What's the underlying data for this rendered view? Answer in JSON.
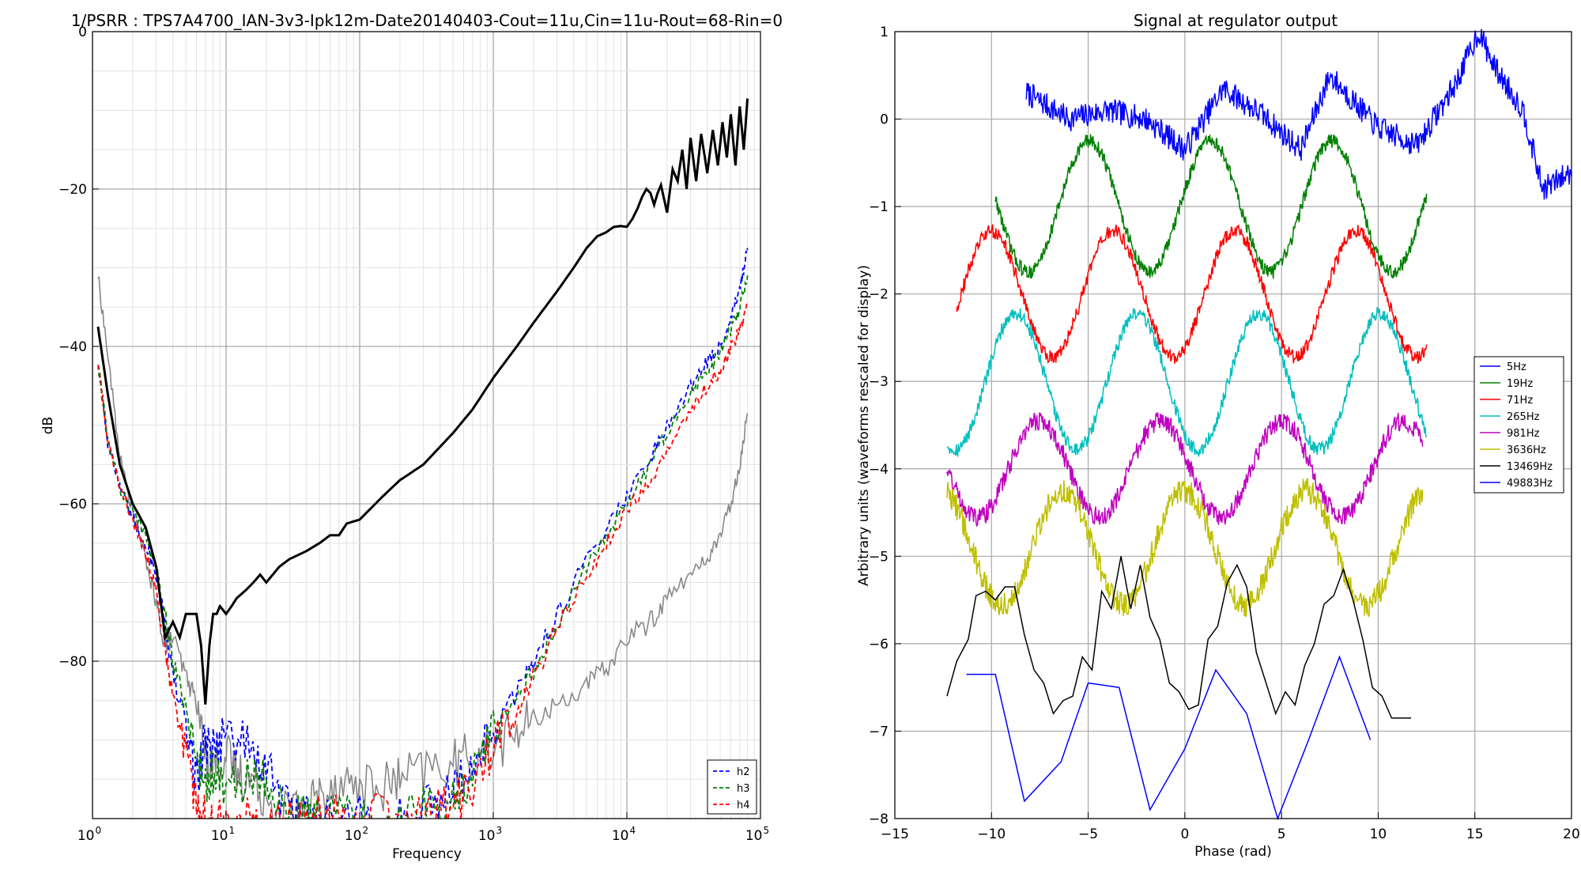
{
  "chart_data": [
    {
      "type": "line",
      "title": "1/PSRR : TPS7A4700_IAN-3v3-Ipk12m-Date20140403-Cout=11u,Cin=11u-Rout=68-Rin=0",
      "xlabel": "Frequency",
      "ylabel": "dB",
      "xscale": "log",
      "xlim": [
        1,
        100000
      ],
      "ylim": [
        -100,
        0
      ],
      "xtick_labels": [
        {
          "base": "10",
          "exp": "0"
        },
        {
          "base": "10",
          "exp": "1"
        },
        {
          "base": "10",
          "exp": "2"
        },
        {
          "base": "10",
          "exp": "3"
        },
        {
          "base": "10",
          "exp": "4"
        },
        {
          "base": "10",
          "exp": "5"
        }
      ],
      "ytick_labels": [
        "0",
        "−20",
        "−40",
        "−60",
        "−80"
      ],
      "grid": true,
      "legend_position": "lower-right",
      "series": [
        {
          "name": "",
          "color": "#000000",
          "style": "solid",
          "width": 3,
          "x": [
            1.1,
            1.3,
            1.6,
            2,
            2.5,
            3,
            3.5,
            4,
            4.5,
            5,
            5.5,
            6,
            6.5,
            7,
            7.5,
            8,
            8.5,
            9,
            10,
            11,
            12,
            14,
            16,
            18,
            20,
            25,
            30,
            40,
            50,
            60,
            70,
            80,
            100,
            150,
            200,
            300,
            500,
            700,
            1000,
            1500,
            2000,
            3000,
            4000,
            5000,
            6000,
            7000,
            8000,
            9000,
            10000,
            11000,
            12000,
            13000,
            14000,
            15000,
            16000,
            17000,
            18000,
            20000,
            22000,
            24000,
            26000,
            28000,
            30000,
            33000,
            36000,
            40000,
            44000,
            48000,
            52000,
            56000,
            60000,
            65000,
            70000,
            75000,
            80000
          ],
          "y": [
            -37.5,
            -46,
            -55,
            -60,
            -63,
            -68,
            -77,
            -75,
            -77,
            -74,
            -74,
            -74,
            -78,
            -85.5,
            -78,
            -74,
            -74,
            -73,
            -74,
            -73,
            -72,
            -71,
            -70,
            -69,
            -70,
            -68,
            -67,
            -66,
            -65,
            -64,
            -64,
            -62.5,
            -62,
            -59,
            -57,
            -55,
            -51,
            -48,
            -44,
            -40,
            -37,
            -33,
            -30,
            -27.5,
            -26,
            -25.5,
            -24.8,
            -24.7,
            -24.8,
            -23.8,
            -22.5,
            -21,
            -20,
            -20.5,
            -22,
            -20.5,
            -19.5,
            -23,
            -17.5,
            -19,
            -15,
            -20,
            -13.5,
            -19,
            -13,
            -18,
            -12.5,
            -17,
            -11.5,
            -16,
            -10.5,
            -17,
            -9.5,
            -15,
            -8.5
          ]
        },
        {
          "name": "",
          "color": "#888888",
          "style": "solid",
          "width": 1.6,
          "x": [
            1.1,
            1.3,
            1.6,
            2,
            2.5,
            3,
            3.5,
            4,
            5,
            6,
            7,
            8,
            10,
            12,
            15,
            20,
            30,
            40,
            50,
            70,
            100,
            150,
            200,
            300,
            500,
            700,
            1000,
            1500,
            2000,
            3000,
            5000,
            7000,
            10000,
            15000,
            20000,
            30000,
            40000,
            50000,
            60000,
            70000,
            80000
          ],
          "y": [
            -31,
            -41,
            -54,
            -61,
            -67,
            -73,
            -78,
            -77,
            -82,
            -85,
            -92,
            -93,
            -92,
            -94,
            -95,
            -97,
            -99,
            -98,
            -97,
            -95,
            -96,
            -96,
            -95,
            -94,
            -93,
            -92,
            -91,
            -89,
            -87.5,
            -85.5,
            -83,
            -81,
            -77,
            -75,
            -72,
            -69,
            -67,
            -64,
            -60,
            -55,
            -48.5
          ]
        },
        {
          "name": "h2",
          "color": "#0000ff",
          "style": "dashed",
          "width": 1.8,
          "x": [
            1.1,
            1.3,
            1.6,
            2,
            2.5,
            3,
            3.5,
            4,
            5,
            6,
            7,
            8,
            10,
            15,
            20,
            30,
            40,
            50,
            100,
            200,
            300,
            500,
            700,
            1000,
            1500,
            2000,
            3000,
            5000,
            7000,
            10000,
            15000,
            20000,
            30000,
            40000,
            50000,
            60000,
            70000,
            80000
          ],
          "y": [
            -42,
            -52,
            -58,
            -62,
            -65,
            -69,
            -75,
            -82,
            -88,
            -95,
            -90,
            -91,
            -89,
            -91,
            -94,
            -99,
            -100,
            -100,
            -100,
            -100,
            -99,
            -97,
            -93,
            -89,
            -84,
            -80,
            -74,
            -67,
            -63,
            -59,
            -54,
            -50,
            -45,
            -42,
            -40,
            -36,
            -33,
            -27.5
          ]
        },
        {
          "name": "h3",
          "color": "#008000",
          "style": "dashed",
          "width": 1.8,
          "x": [
            1.1,
            1.3,
            1.6,
            2,
            2.5,
            3,
            3.5,
            4,
            5,
            6,
            7,
            8,
            10,
            15,
            20,
            30,
            40,
            50,
            100,
            200,
            300,
            500,
            700,
            1000,
            1500,
            2000,
            3000,
            5000,
            7000,
            10000,
            15000,
            20000,
            30000,
            40000,
            50000,
            60000,
            70000,
            80000
          ],
          "y": [
            -42,
            -52,
            -58,
            -61,
            -64,
            -68,
            -74,
            -80,
            -86,
            -92,
            -95,
            -94,
            -96,
            -95,
            -94,
            -100,
            -100,
            -100,
            -100,
            -100,
            -99,
            -98,
            -94,
            -89,
            -85,
            -81,
            -75,
            -68,
            -64,
            -60,
            -55,
            -51,
            -46,
            -43,
            -41,
            -38,
            -35,
            -31
          ]
        },
        {
          "name": "h4",
          "color": "#ff0000",
          "style": "dashed",
          "width": 1.8,
          "x": [
            1.1,
            1.3,
            1.6,
            2,
            2.5,
            3,
            3.5,
            4,
            5,
            6,
            7,
            8,
            10,
            15,
            20,
            30,
            40,
            50,
            100,
            200,
            300,
            500,
            700,
            1000,
            1500,
            2000,
            3000,
            5000,
            7000,
            10000,
            15000,
            20000,
            30000,
            40000,
            50000,
            60000,
            70000,
            80000
          ],
          "y": [
            -42,
            -52,
            -58,
            -62,
            -66,
            -71,
            -78,
            -85,
            -92,
            -98,
            -100,
            -100,
            -100,
            -100,
            -100,
            -100,
            -100,
            -100,
            -100,
            -100,
            -100,
            -98,
            -96,
            -91,
            -87,
            -82,
            -76,
            -69,
            -65,
            -61,
            -57,
            -53,
            -48,
            -45,
            -43,
            -40,
            -38,
            -35
          ]
        }
      ]
    },
    {
      "type": "line",
      "title": "Signal at regulator output",
      "xlabel": "Phase (rad)",
      "ylabel": "Arbitrary units (waveforms rescaled for display)",
      "xlim": [
        -15,
        20
      ],
      "ylim": [
        -8,
        1
      ],
      "xtick_labels": [
        "−15",
        "−10",
        "−5",
        "0",
        "5",
        "10",
        "15",
        "20"
      ],
      "ytick_labels": [
        "1",
        "0",
        "−1",
        "−2",
        "−3",
        "−4",
        "−5",
        "−6",
        "−7",
        "−8"
      ],
      "grid": true,
      "legend_position": "center-right",
      "series": [
        {
          "name": "5Hz",
          "color": "#0000ff",
          "xmin": -8.2,
          "xmax": 20.0,
          "period": 6.2832,
          "phase": -1.0,
          "offset": 0.0,
          "amplitude": 0.2,
          "noise": 0.09,
          "x": [
            -8.2,
            -6,
            -4,
            -2,
            0,
            2,
            4,
            6,
            7.5,
            10,
            12,
            14,
            15.2,
            16,
            17.5,
            18.5,
            19.3,
            20
          ],
          "y": [
            0.3,
            0.0,
            0.1,
            0.0,
            -0.35,
            0.35,
            0.05,
            -0.35,
            0.5,
            -0.1,
            -0.3,
            0.4,
            1.0,
            0.6,
            0.1,
            -0.8,
            -0.7,
            -0.6
          ]
        },
        {
          "name": "19Hz",
          "color": "#008000",
          "xmin": -9.8,
          "xmax": 12.5,
          "period": 6.2832,
          "phase": 0.25,
          "offset": -1.0,
          "amplitude": 0.75,
          "noise": 0.05,
          "x": [],
          "y": []
        },
        {
          "name": "71Hz",
          "color": "#ff0000",
          "xmin": -11.8,
          "xmax": 12.5,
          "period": 6.2832,
          "phase": -1.0,
          "offset": -2.0,
          "amplitude": 0.72,
          "noise": 0.05,
          "x": [],
          "y": []
        },
        {
          "name": "265Hz",
          "color": "#00bfbf",
          "xmin": -12.3,
          "xmax": 12.5,
          "period": 6.2832,
          "phase": -2.25,
          "offset": -3.0,
          "amplitude": 0.78,
          "noise": 0.05,
          "x": [],
          "y": []
        },
        {
          "name": "981Hz",
          "color": "#bf00bf",
          "xmin": -12.3,
          "xmax": 12.3,
          "period": 6.2832,
          "phase": 2.85,
          "offset": -4.0,
          "amplitude": 0.55,
          "noise": 0.07,
          "x": [],
          "y": []
        },
        {
          "name": "3636Hz",
          "color": "#bfbf00",
          "xmin": -12.3,
          "xmax": 12.3,
          "period": 6.2832,
          "phase": 1.6,
          "offset": -4.9,
          "amplitude": 0.65,
          "noise": 0.09,
          "x": [],
          "y": []
        },
        {
          "name": "13469Hz",
          "color": "#000000",
          "x": [
            -12.3,
            -11.8,
            -11.2,
            -10.8,
            -10.3,
            -9.8,
            -9.3,
            -8.8,
            -8.3,
            -7.8,
            -7.3,
            -6.8,
            -6.3,
            -5.8,
            -5.3,
            -4.8,
            -4.3,
            -3.8,
            -3.3,
            -2.8,
            -2.3,
            -1.8,
            -1.3,
            -0.8,
            -0.3,
            0.2,
            0.7,
            1.2,
            1.7,
            2.2,
            2.7,
            3.2,
            3.7,
            4.2,
            4.7,
            5.2,
            5.7,
            6.2,
            6.7,
            7.2,
            7.7,
            8.2,
            8.7,
            9.2,
            9.7,
            10.2,
            10.7,
            11.2,
            11.7
          ],
          "y": [
            -6.6,
            -6.2,
            -5.95,
            -5.45,
            -5.4,
            -5.5,
            -5.35,
            -5.35,
            -5.9,
            -6.3,
            -6.45,
            -6.8,
            -6.65,
            -6.6,
            -6.15,
            -6.3,
            -5.4,
            -5.6,
            -5.0,
            -5.6,
            -5.1,
            -5.7,
            -5.95,
            -6.45,
            -6.55,
            -6.75,
            -6.7,
            -5.95,
            -5.8,
            -5.3,
            -5.1,
            -5.35,
            -6.1,
            -6.45,
            -6.8,
            -6.55,
            -6.7,
            -6.25,
            -6.0,
            -5.55,
            -5.45,
            -5.15,
            -5.5,
            -5.95,
            -6.5,
            -6.6,
            -6.85,
            -6.85,
            -6.85
          ]
        },
        {
          "name": "49883Hz",
          "color": "#0000ff",
          "x": [
            -11.3,
            -9.8,
            -8.3,
            -6.4,
            -5.0,
            -3.4,
            -1.8,
            0.0,
            1.6,
            3.2,
            4.8,
            6.4,
            8.0,
            9.6
          ],
          "y": [
            -6.35,
            -6.35,
            -7.8,
            -7.35,
            -6.45,
            -6.5,
            -7.9,
            -7.2,
            -6.3,
            -6.8,
            -8.0,
            -7.1,
            -6.15,
            -7.1
          ]
        }
      ]
    }
  ]
}
